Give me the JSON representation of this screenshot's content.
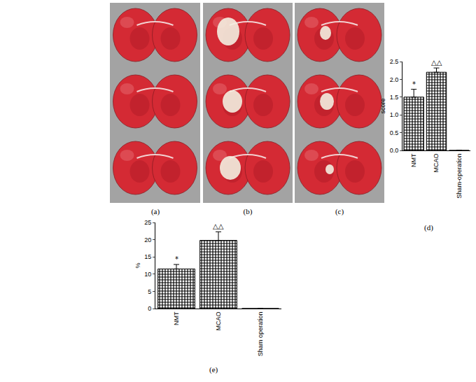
{
  "images": [
    {
      "label": "(a)"
    },
    {
      "label": "(b)"
    },
    {
      "label": "(c)"
    }
  ],
  "chart_data": [
    {
      "type": "bar",
      "label": "(d)",
      "ylabel": "score",
      "categories": [
        "NMT",
        "MCAO",
        "Sham-operation"
      ],
      "values": [
        1.5,
        2.2,
        0
      ],
      "errors": [
        0.22,
        0.12,
        0
      ],
      "color": "#000000",
      "ylim": [
        0,
        2.5
      ],
      "yticks": [
        {
          "value": 0,
          "label": "0.0"
        },
        0.5,
        {
          "value": 1,
          "label": "1.0"
        },
        1.5,
        {
          "value": 2,
          "label": "2.0"
        },
        2.5
      ],
      "annotations": [
        {
          "category": "NMT",
          "text": "*"
        },
        {
          "category": "MCAO",
          "text": "△△"
        }
      ]
    },
    {
      "type": "bar",
      "label": "(e)",
      "ylabel": "%",
      "categories": [
        "NMT",
        "MCAO",
        "Sham operation"
      ],
      "values": [
        11.5,
        19.8,
        0
      ],
      "errors": [
        1.3,
        2.5,
        0
      ],
      "color": "#000000",
      "ylim": [
        0,
        25
      ],
      "yticks": [
        0,
        5,
        10,
        15,
        20,
        25
      ],
      "annotations": [
        {
          "category": "NMT",
          "text": "*"
        },
        {
          "category": "MCAO",
          "text": "△△"
        }
      ]
    }
  ]
}
